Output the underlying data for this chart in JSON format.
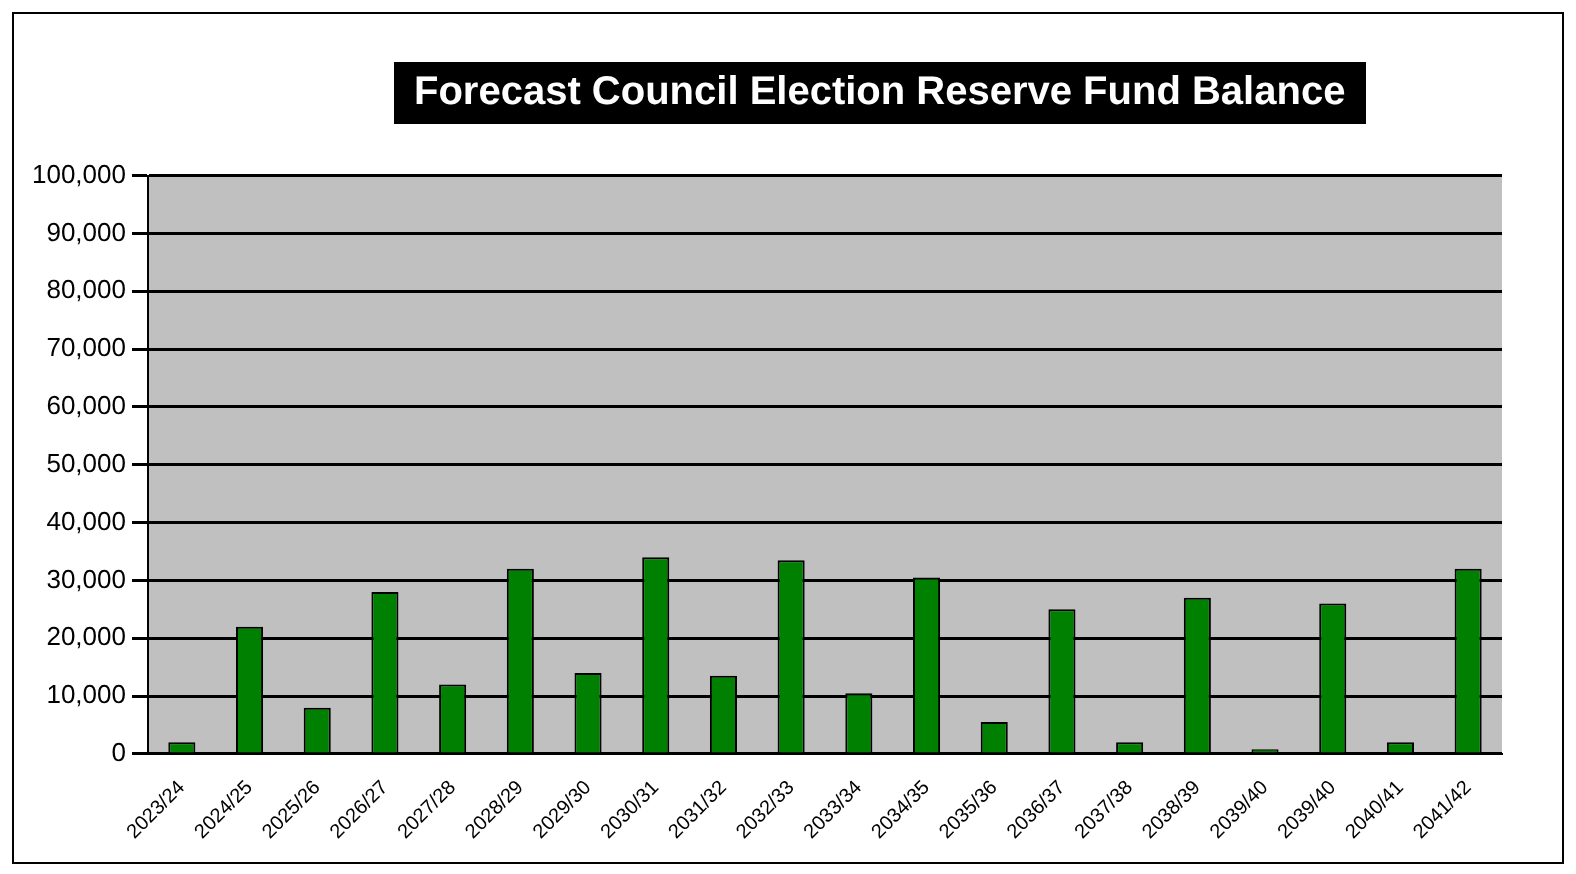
{
  "chart_data": {
    "type": "bar",
    "title": "Forecast Council Election Reserve Fund Balance",
    "categories": [
      "2023/24",
      "2024/25",
      "2025/26",
      "2026/27",
      "2027/28",
      "2028/29",
      "2029/30",
      "2030/31",
      "2031/32",
      "2032/33",
      "2033/34",
      "2034/35",
      "2035/36",
      "2036/37",
      "2037/38",
      "2038/39",
      "2039/40",
      "2039/40",
      "2040/41",
      "2041/42"
    ],
    "values": [
      2000,
      22000,
      8000,
      28000,
      12000,
      32000,
      14000,
      34000,
      13500,
      33500,
      10500,
      30500,
      5500,
      25000,
      2000,
      27000,
      800,
      26000,
      2000,
      32000
    ],
    "color": "#008000",
    "ylim": [
      0,
      100000
    ],
    "yticks": [
      0,
      {
        "value": 10000,
        "label": "10,000"
      },
      {
        "value": 20000,
        "label": "20,000"
      },
      {
        "value": 30000,
        "label": "30,000"
      },
      {
        "value": 40000,
        "label": "40,000"
      },
      {
        "value": 50000,
        "label": "50,000"
      },
      {
        "value": 60000,
        "label": "60,000"
      },
      {
        "value": 70000,
        "label": "70,000"
      },
      {
        "value": 80000,
        "label": "80,000"
      },
      {
        "value": 90000,
        "label": "90,000"
      },
      {
        "value": 100000,
        "label": "100,000"
      }
    ],
    "grid": "y",
    "legend": false
  }
}
